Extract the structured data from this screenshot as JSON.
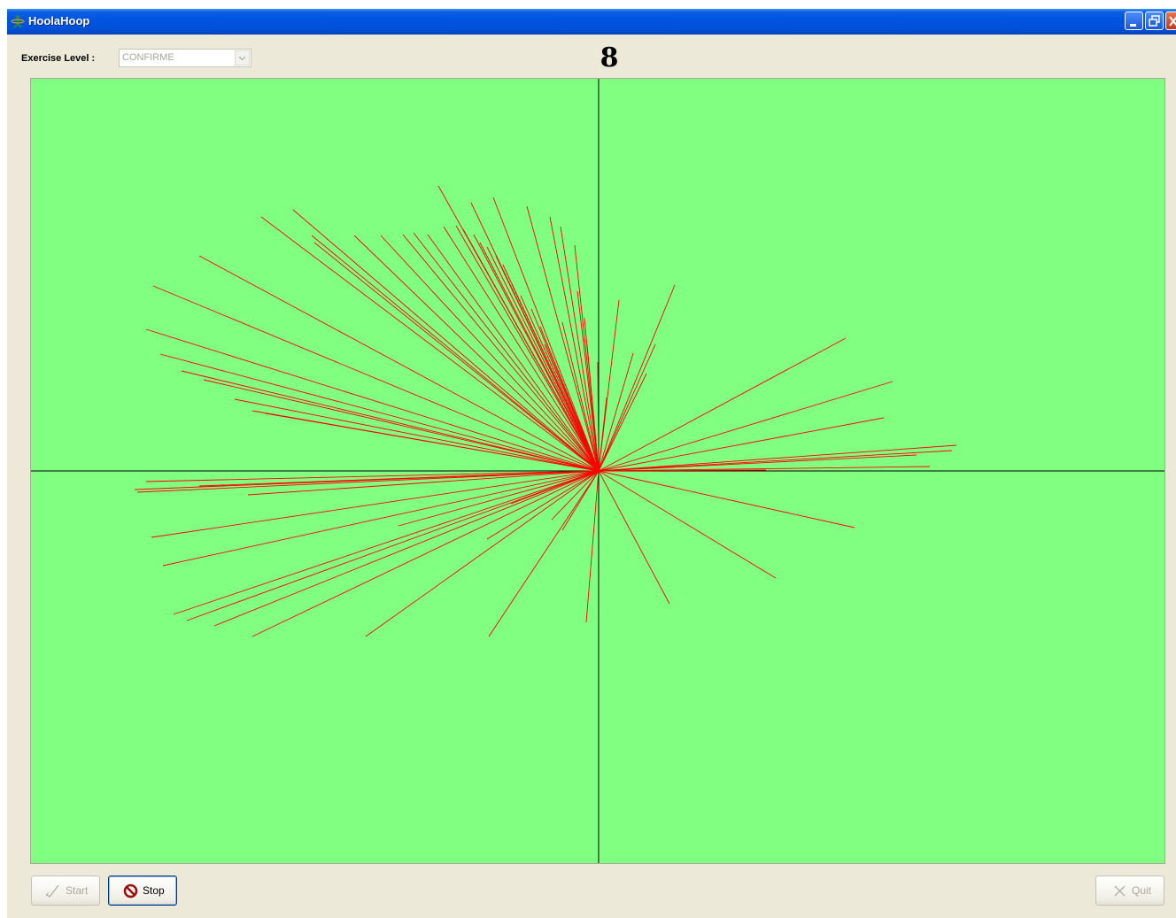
{
  "window": {
    "title": "HoolaHoop",
    "accent": "#0054e3"
  },
  "controls": {
    "level_label": "Exercise Level :",
    "level_value": "CONFIRME",
    "counter": "8"
  },
  "canvas": {
    "background": "#80ff80",
    "line_color": "#ff0000",
    "axis_color": "#000000"
  },
  "buttons": {
    "start": "Start",
    "stop": "Stop",
    "quit": "Quit"
  },
  "icons": {
    "app": "hoop-figure-icon",
    "start": "checkmark-icon",
    "stop": "no-entry-icon",
    "quit": "x-mark-icon"
  }
}
